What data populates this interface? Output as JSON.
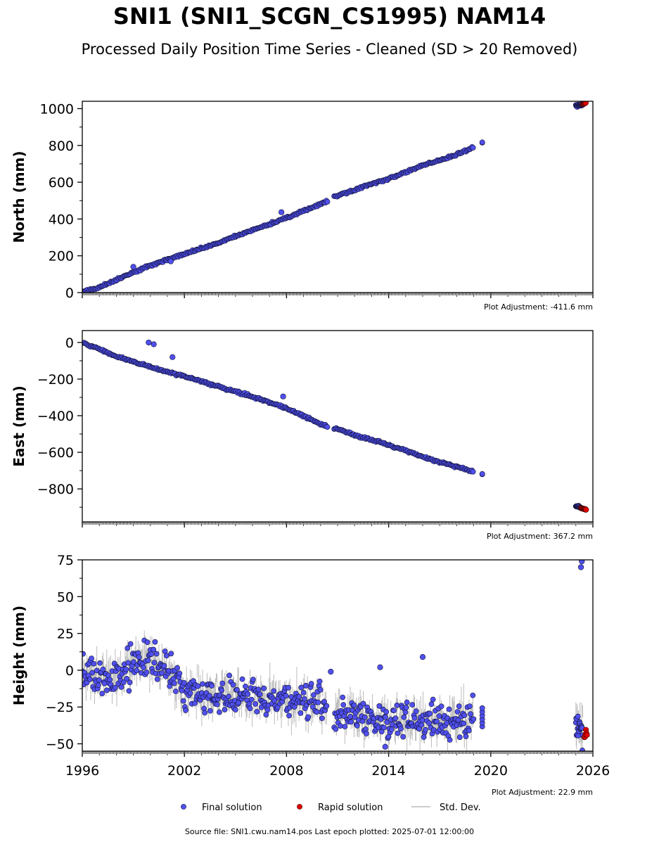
{
  "title": "SNI1 (SNI1_SCGN_CS1995) NAM14",
  "subtitle": "Processed Daily Position Time Series - Cleaned (SD > 20 Removed)",
  "footer": "Source file: SNI1.cwu.nam14.pos  Last epoch plotted: 2025-07-01 12:00:00",
  "legend": {
    "final": "Final solution",
    "rapid": "Rapid solution",
    "stddev": "Std. Dev."
  },
  "colors": {
    "final": "#5050f0",
    "rapid": "#e00000",
    "stddev": "#bbbbbb",
    "edge": "#111133"
  },
  "chart_data": [
    {
      "type": "scatter",
      "ylabel": "North (mm)",
      "adjustment": "Plot Adjustment: -411.6 mm",
      "xlim": [
        1996,
        2026
      ],
      "ylim": [
        0,
        1040
      ],
      "yticks": [
        0,
        200,
        400,
        600,
        800,
        1000
      ],
      "yticklabels": [
        "0",
        "200",
        "400",
        "600",
        "800",
        "1000"
      ],
      "final_trend": [
        [
          1996.0,
          5
        ],
        [
          1996.8,
          22
        ],
        [
          1998.0,
          70
        ],
        [
          2000.0,
          148
        ],
        [
          2002.0,
          210
        ],
        [
          2004.0,
          270
        ],
        [
          2006.0,
          340
        ],
        [
          2008.0,
          405
        ],
        [
          2010.4,
          498
        ],
        [
          2010.8,
          520
        ],
        [
          2012.0,
          560
        ],
        [
          2014.0,
          620
        ],
        [
          2016.0,
          690
        ],
        [
          2018.0,
          750
        ],
        [
          2019.0,
          790
        ],
        [
          2019.5,
          815
        ],
        [
          2025.0,
          1015
        ],
        [
          2025.4,
          1022
        ]
      ],
      "final_outliers": [
        [
          2007.7,
          437
        ],
        [
          2001.2,
          170
        ],
        [
          1999.0,
          140
        ]
      ],
      "rapid_trend": [
        [
          2025.4,
          1025
        ],
        [
          2025.6,
          1032
        ]
      ]
    },
    {
      "type": "scatter",
      "ylabel": "East (mm)",
      "adjustment": "Plot Adjustment: 367.2 mm",
      "xlim": [
        1996,
        2026
      ],
      "ylim": [
        -980,
        65
      ],
      "yticks": [
        0,
        -200,
        -400,
        -600,
        -800
      ],
      "yticklabels": [
        "0",
        "−200",
        "−400",
        "−600",
        "−800"
      ],
      "final_trend": [
        [
          1996.0,
          0
        ],
        [
          1996.5,
          -20
        ],
        [
          1998.0,
          -75
        ],
        [
          2000.0,
          -135
        ],
        [
          2002.0,
          -185
        ],
        [
          2004.0,
          -240
        ],
        [
          2006.0,
          -295
        ],
        [
          2008.0,
          -360
        ],
        [
          2010.3,
          -455
        ],
        [
          2010.8,
          -470
        ],
        [
          2012.0,
          -505
        ],
        [
          2014.0,
          -560
        ],
        [
          2016.0,
          -625
        ],
        [
          2018.0,
          -680
        ],
        [
          2019.0,
          -705
        ],
        [
          2019.5,
          -720
        ],
        [
          2025.0,
          -895
        ],
        [
          2025.3,
          -902
        ]
      ],
      "final_outliers": [
        [
          1999.9,
          0
        ],
        [
          2000.2,
          -10
        ],
        [
          2001.3,
          -80
        ],
        [
          2007.8,
          -295
        ]
      ],
      "rapid_trend": [
        [
          2025.3,
          -905
        ],
        [
          2025.6,
          -912
        ]
      ]
    },
    {
      "type": "scatter",
      "ylabel": "Height (mm)",
      "adjustment": "Plot Adjustment: 22.9 mm",
      "xlim": [
        1996,
        2026
      ],
      "ylim": [
        -55,
        75
      ],
      "yticks": [
        75,
        50,
        25,
        0,
        -25,
        -50
      ],
      "yticklabels": [
        "75",
        "50",
        "25",
        "0",
        "−25",
        "−50"
      ],
      "xticks": [
        1996,
        2002,
        2008,
        2014,
        2020,
        2026
      ],
      "xticklabels": [
        "1996",
        "2002",
        "2008",
        "2014",
        "2020",
        "2026"
      ],
      "final_mean": [
        [
          1996.0,
          -2
        ],
        [
          1998.0,
          -5
        ],
        [
          1999.0,
          5
        ],
        [
          2000.0,
          8
        ],
        [
          2001.0,
          0
        ],
        [
          2002.0,
          -15
        ],
        [
          2005.0,
          -18
        ],
        [
          2008.0,
          -20
        ],
        [
          2010.3,
          -22
        ],
        [
          2010.8,
          -30
        ],
        [
          2013.0,
          -33
        ],
        [
          2016.0,
          -35
        ],
        [
          2019.0,
          -33
        ],
        [
          2019.5,
          -32
        ],
        [
          2025.0,
          -38
        ],
        [
          2025.4,
          -40
        ]
      ],
      "final_outliers": [
        [
          2013.5,
          2
        ],
        [
          2016.0,
          9
        ],
        [
          2010.6,
          -1
        ],
        [
          2013.8,
          -52
        ],
        [
          2025.3,
          70
        ],
        [
          2025.35,
          74
        ]
      ],
      "rapid_trend": [
        [
          2025.5,
          -45
        ],
        [
          2025.65,
          -42
        ]
      ]
    }
  ]
}
